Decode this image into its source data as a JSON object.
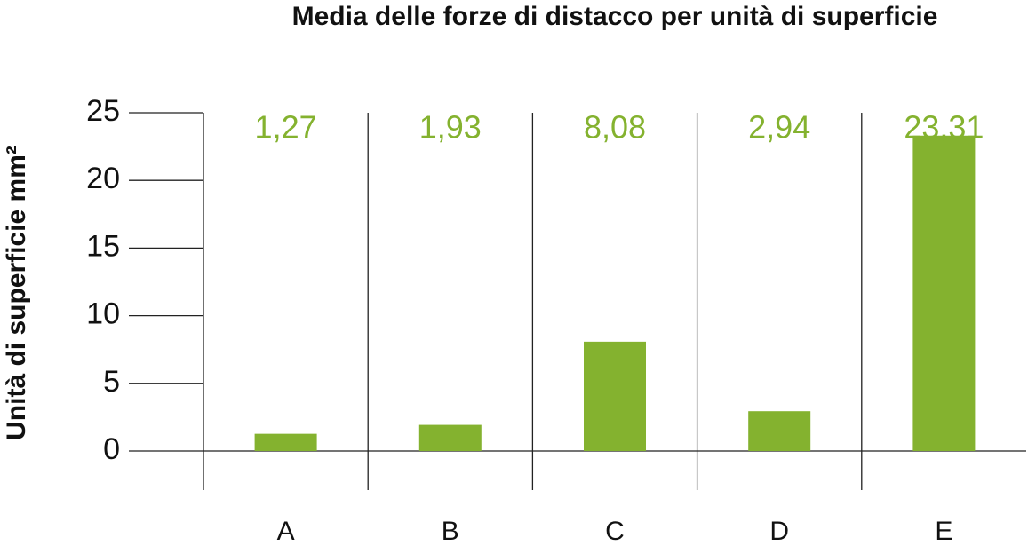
{
  "chart_data": {
    "type": "bar",
    "title": "Media delle forze di distacco per unità di superficie",
    "y_label": "Unità di superficie mm²",
    "categories": [
      "A",
      "B",
      "C",
      "D",
      "E"
    ],
    "values": [
      1.27,
      1.93,
      8.08,
      2.94,
      23.31
    ],
    "value_labels": [
      "1,27",
      "1,93",
      "8,08",
      "2,94",
      "23,31"
    ],
    "color": "#84b22f",
    "ylim": [
      0,
      25
    ],
    "yticks": [
      0,
      5,
      10,
      15,
      20,
      25
    ]
  }
}
